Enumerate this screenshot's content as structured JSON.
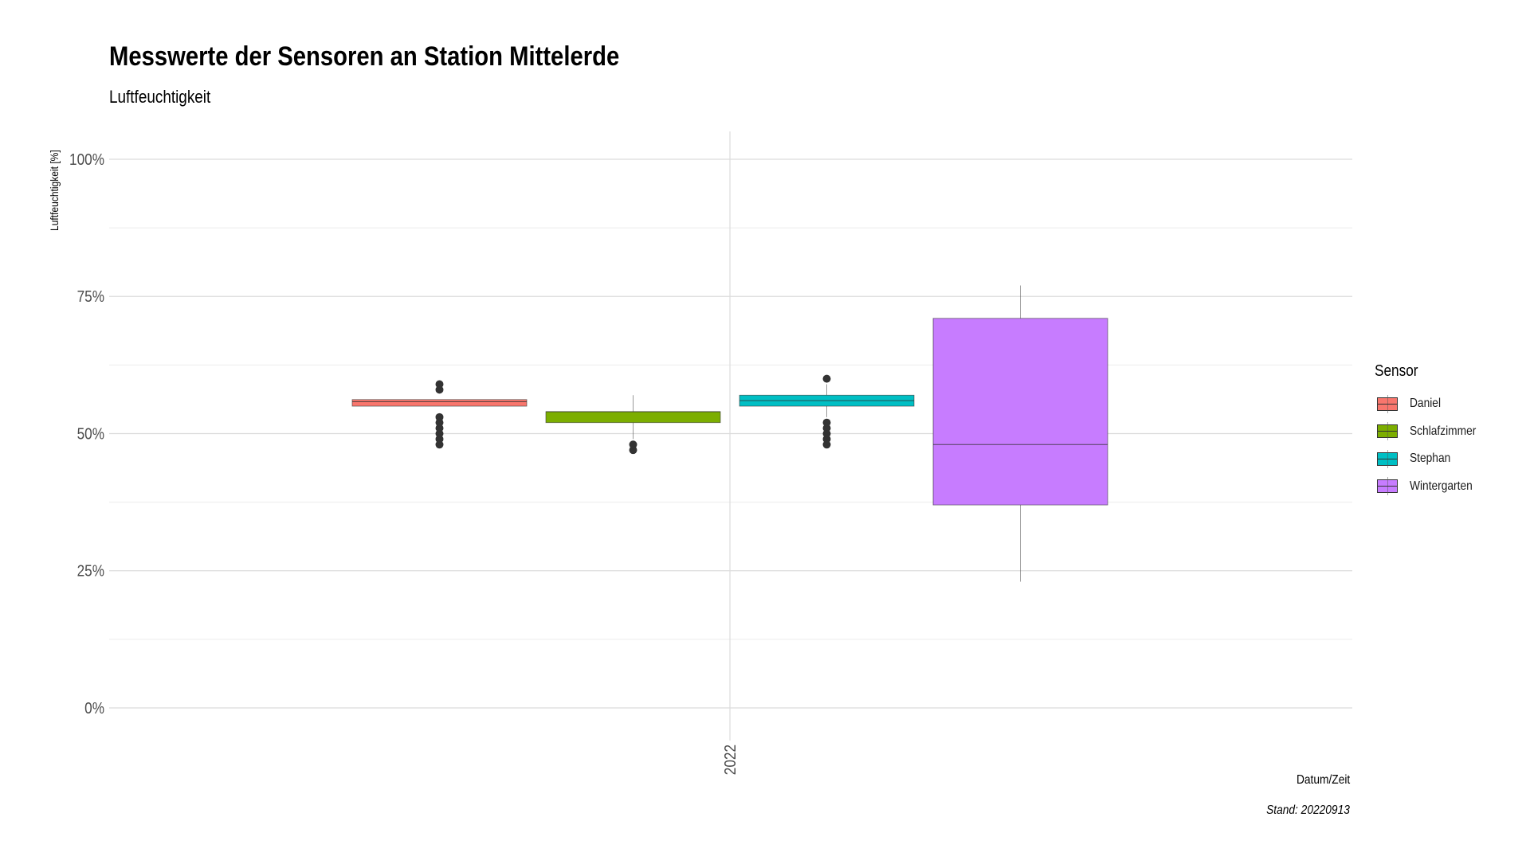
{
  "chart_data": {
    "type": "boxplot",
    "title": "Messwerte der Sensoren an Station Mittelerde",
    "subtitle": "Luftfeuchtigkeit",
    "xlabel": "Datum/Zeit",
    "ylabel": "Luftfeuchtigkeit [%]",
    "caption": "Stand: 20220913",
    "x_categories": [
      "2022"
    ],
    "y_ticks": [
      "0%",
      "25%",
      "50%",
      "75%",
      "100%"
    ],
    "ylim": [
      0,
      1.05
    ],
    "y_tick_values": [
      0,
      0.25,
      0.5,
      0.75,
      1.0
    ],
    "grid": true,
    "legend": {
      "title": "Sensor",
      "position": "right"
    },
    "series": [
      {
        "name": "Daniel",
        "color": "#F8766D",
        "q1": 0.55,
        "median": 0.558,
        "q3": 0.562,
        "whisker_low": 0.55,
        "whisker_high": 0.562,
        "outliers": [
          0.48,
          0.49,
          0.5,
          0.51,
          0.52,
          0.53,
          0.58,
          0.59
        ]
      },
      {
        "name": "Schlafzimmer",
        "color": "#7CAE00",
        "q1": 0.52,
        "median": 0.54,
        "q3": 0.54,
        "whisker_low": 0.49,
        "whisker_high": 0.57,
        "outliers": [
          0.47,
          0.48
        ]
      },
      {
        "name": "Stephan",
        "color": "#00BFC4",
        "q1": 0.55,
        "median": 0.56,
        "q3": 0.57,
        "whisker_low": 0.53,
        "whisker_high": 0.59,
        "outliers": [
          0.48,
          0.49,
          0.5,
          0.51,
          0.52,
          0.6
        ]
      },
      {
        "name": "Wintergarten",
        "color": "#C77CFF",
        "q1": 0.37,
        "median": 0.48,
        "q3": 0.71,
        "whisker_low": 0.23,
        "whisker_high": 0.77,
        "outliers": []
      }
    ]
  }
}
